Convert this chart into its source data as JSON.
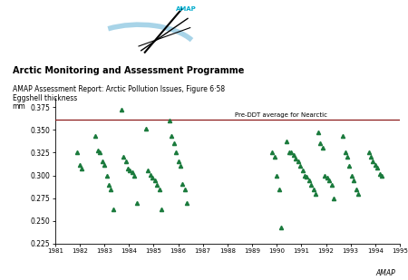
{
  "pre_ddt_line": 0.361,
  "pre_ddt_label": "Pre-DDT average for Nearctic",
  "ylim": [
    0.225,
    0.385
  ],
  "yticks": [
    0.225,
    0.25,
    0.275,
    0.3,
    0.325,
    0.35,
    0.375
  ],
  "xlim": [
    1981,
    1995
  ],
  "xticks": [
    1981,
    1982,
    1983,
    1984,
    1985,
    1986,
    1987,
    1988,
    1989,
    1990,
    1991,
    1992,
    1993,
    1994,
    1995
  ],
  "eggshell_label": "Eggshell thickness",
  "mm_label": "mm",
  "title_main": "Arctic Monitoring and Assessment Programme",
  "title_sub": "AMAP Assessment Report: Arctic Pollution Issues, Figure 6·58",
  "marker_color": "#1a7a3c",
  "ref_line_color": "#8b1a1a",
  "data_points": {
    "1982": [
      0.325,
      0.311,
      0.307
    ],
    "1983": [
      0.343,
      0.327,
      0.325,
      0.315,
      0.311,
      0.3,
      0.29,
      0.285,
      0.263
    ],
    "1984": [
      0.372,
      0.32,
      0.315,
      0.307,
      0.305,
      0.303,
      0.3,
      0.27
    ],
    "1985": [
      0.351,
      0.305,
      0.301,
      0.298,
      0.295,
      0.29,
      0.285,
      0.263
    ],
    "1986": [
      0.36,
      0.343,
      0.335,
      0.325,
      0.315,
      0.31,
      0.291,
      0.285,
      0.27
    ],
    "1990": [
      0.325,
      0.32,
      0.3,
      0.285,
      0.243
    ],
    "1991": [
      0.337,
      0.325,
      0.325,
      0.322,
      0.318,
      0.315,
      0.31,
      0.305,
      0.3,
      0.299,
      0.295,
      0.29,
      0.285,
      0.28
    ],
    "1992": [
      0.347,
      0.335,
      0.33,
      0.3,
      0.298,
      0.295,
      0.29,
      0.275
    ],
    "1993": [
      0.343,
      0.325,
      0.32,
      0.31,
      0.3,
      0.295,
      0.285,
      0.28
    ],
    "1994": [
      0.325,
      0.32,
      0.315,
      0.311,
      0.308,
      0.302,
      0.3
    ]
  },
  "amap_credit": "AMAP"
}
